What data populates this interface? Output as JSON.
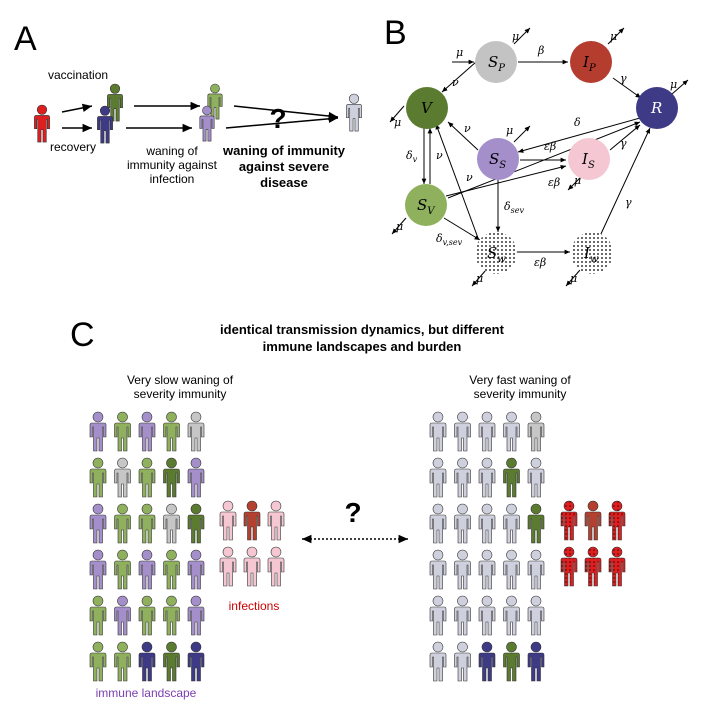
{
  "panels": {
    "a": "A",
    "b": "B",
    "c": "C"
  },
  "panel_a": {
    "vaccination": "vaccination",
    "recovery": "recovery",
    "waning_infection": [
      "waning of",
      "immunity against",
      "infection"
    ],
    "question": "?",
    "waning_severe": [
      "waning of immunity",
      "against severe",
      "disease"
    ]
  },
  "panel_b": {
    "nodes": {
      "SP": "S",
      "SP_sub": "P",
      "IP": "I",
      "IP_sub": "P",
      "V": "V",
      "R": "R",
      "SS": "S",
      "SS_sub": "S",
      "IS": "I",
      "IS_sub": "S",
      "SV": "S",
      "SV_sub": "V",
      "Sw": "S",
      "Sw_sub": "w",
      "Iw": "I",
      "Iw_sub": "w"
    },
    "rates": {
      "mu": "μ",
      "beta": "β",
      "gamma": "γ",
      "nu": "ν",
      "delta": "δ",
      "eps_beta": "εβ",
      "delta_v": "δ",
      "delta_v_sub": "v",
      "delta_sev": "δ",
      "delta_sev_sub": "sev",
      "delta_vsev": "δ",
      "delta_vsev_sub": "v,sev"
    }
  },
  "panel_c": {
    "title": [
      "identical transmission dynamics, but different",
      "immune landscapes and burden"
    ],
    "left_caption": [
      "Very slow waning of",
      "severity immunity"
    ],
    "right_caption": [
      "Very fast waning of",
      "severity immunity"
    ],
    "question": "?",
    "infections": "infections",
    "immune_landscape": "immune landscape"
  },
  "colors": {
    "light_green": "#8fb15d",
    "dark_green": "#5a7b30",
    "lavender": "#a48fcb",
    "navy": "#3e3a86",
    "grey": "#c6c6c6",
    "pale_grey": "#cfd0de",
    "pink": "#f4c7d2",
    "brick": "#b4402f",
    "red": "#dd1f1f"
  },
  "grids": {
    "left": [
      [
        "lavender",
        "light_green",
        "lavender",
        "light_green",
        "grey"
      ],
      [
        "light_green",
        "grey",
        "light_green",
        "dark_green",
        "lavender"
      ],
      [
        "lavender",
        "light_green",
        "light_green",
        "grey",
        "dark_green"
      ],
      [
        "lavender",
        "light_green",
        "lavender",
        "light_green",
        "lavender"
      ],
      [
        "light_green",
        "lavender",
        "light_green",
        "light_green",
        "lavender"
      ],
      [
        "light_green",
        "light_green",
        "navy",
        "dark_green",
        "navy"
      ]
    ],
    "right": [
      [
        "pale_grey",
        "pale_grey",
        "pale_grey",
        "pale_grey",
        "grey"
      ],
      [
        "pale_grey",
        "pale_grey",
        "pale_grey",
        "dark_green",
        "pale_grey"
      ],
      [
        "pale_grey",
        "pale_grey",
        "pale_grey",
        "pale_grey",
        "dark_green"
      ],
      [
        "pale_grey",
        "pale_grey",
        "pale_grey",
        "pale_grey",
        "pale_grey"
      ],
      [
        "pale_grey",
        "pale_grey",
        "pale_grey",
        "pale_grey",
        "pale_grey"
      ],
      [
        "pale_grey",
        "pale_grey",
        "navy",
        "dark_green",
        "navy"
      ]
    ],
    "left_infections": [
      [
        "pink",
        "brick",
        "pink"
      ],
      [
        "pink",
        "pink",
        "pink"
      ]
    ],
    "right_infections": [
      [
        "red",
        "brick",
        "red"
      ],
      [
        "red",
        "red",
        "red"
      ]
    ]
  }
}
